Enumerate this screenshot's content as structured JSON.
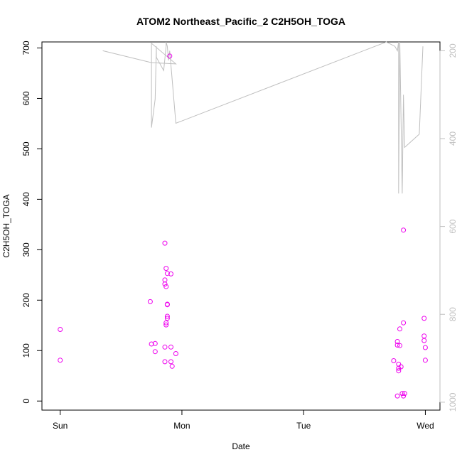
{
  "chart_data": {
    "type": "scatter",
    "title": "ATOM2 Northeast_Pacific_2 C2H5OH_TOGA",
    "xlabel": "Date",
    "ylabel": "C2H5OH_TOGA",
    "x_ticks": [
      "Sun",
      "Mon",
      "Tue",
      "Wed"
    ],
    "x_range_days": [
      -0.15,
      3.12
    ],
    "y_ticks": [
      0,
      100,
      200,
      300,
      400,
      500,
      600,
      700
    ],
    "ylim": [
      -18,
      712
    ],
    "y2_ticks": [
      200,
      400,
      600,
      800,
      1000
    ],
    "y2lim": [
      1018,
      180
    ],
    "y2_reversed": true,
    "grid": false,
    "series": [
      {
        "color": "#ee00ee",
        "marker": "open-circle",
        "points": [
          [
            0.0,
            142
          ],
          [
            0.0,
            81
          ],
          [
            0.74,
            197
          ],
          [
            0.75,
            113
          ],
          [
            0.78,
            114
          ],
          [
            0.78,
            98
          ],
          [
            0.86,
            313
          ],
          [
            0.86,
            107
          ],
          [
            0.86,
            78
          ],
          [
            0.86,
            232
          ],
          [
            0.86,
            240
          ],
          [
            0.87,
            263
          ],
          [
            0.87,
            227
          ],
          [
            0.87,
            155
          ],
          [
            0.87,
            151
          ],
          [
            0.88,
            253
          ],
          [
            0.88,
            191
          ],
          [
            0.88,
            192
          ],
          [
            0.88,
            168
          ],
          [
            0.88,
            164
          ],
          [
            0.9,
            684
          ],
          [
            0.91,
            252
          ],
          [
            0.91,
            78
          ],
          [
            0.91,
            107
          ],
          [
            0.92,
            69
          ],
          [
            0.95,
            94
          ],
          [
            2.74,
            80
          ],
          [
            2.77,
            10
          ],
          [
            2.77,
            118
          ],
          [
            2.77,
            111
          ],
          [
            2.78,
            65
          ],
          [
            2.78,
            60
          ],
          [
            2.78,
            73
          ],
          [
            2.79,
            143
          ],
          [
            2.79,
            110
          ],
          [
            2.8,
            68
          ],
          [
            2.81,
            15
          ],
          [
            2.82,
            10
          ],
          [
            2.82,
            155
          ],
          [
            2.82,
            339
          ],
          [
            2.83,
            15
          ],
          [
            2.99,
            164
          ],
          [
            2.99,
            129
          ],
          [
            2.99,
            120
          ],
          [
            3.0,
            106
          ],
          [
            3.0,
            81
          ]
        ]
      },
      {
        "color": "#bfbfbf",
        "marker": "line",
        "axis": "right",
        "points": [
          [
            0.35,
            200
          ],
          [
            0.75,
            227
          ],
          [
            0.95,
            230
          ],
          [
            0.75,
            183
          ],
          [
            0.75,
            375
          ],
          [
            0.78,
            310
          ],
          [
            0.79,
            190
          ],
          [
            0.79,
            215
          ],
          [
            0.85,
            245
          ],
          [
            0.87,
            190
          ],
          [
            0.87,
            170
          ],
          [
            0.87,
            180
          ],
          [
            0.88,
            190
          ],
          [
            0.89,
            222
          ],
          [
            0.9,
            200
          ],
          [
            0.95,
            365
          ],
          [
            2.68,
            178
          ],
          [
            2.75,
            190
          ],
          [
            2.77,
            200
          ],
          [
            2.78,
            175
          ],
          [
            2.78,
            525
          ],
          [
            2.79,
            175
          ],
          [
            2.81,
            525
          ],
          [
            2.82,
            300
          ],
          [
            2.83,
            420
          ],
          [
            2.95,
            390
          ],
          [
            2.98,
            190
          ]
        ]
      }
    ]
  }
}
